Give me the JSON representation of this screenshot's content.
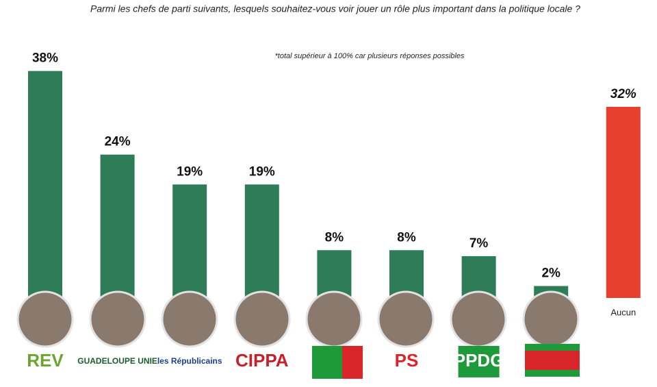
{
  "chart_data": {
    "type": "bar",
    "title": "Parmi les chefs de parti suivants, lesquels souhaitez-vous voir jouer un rôle plus important dans la politique locale ?",
    "note": "*total supérieur à 100% car plusieurs réponses possibles",
    "categories": [
      "REV",
      "GUADELOUPE UNIE",
      "les Républicains",
      "CIPPA",
      null,
      "PS",
      "PPDG",
      null,
      "Aucun"
    ],
    "values": [
      38,
      24,
      19,
      19,
      8,
      8,
      7,
      2,
      32
    ],
    "value_labels": [
      "38%",
      "24%",
      "19%",
      "19%",
      "8%",
      "8%",
      "7%",
      "2%",
      "32%"
    ],
    "colors": [
      "#2f7d58",
      "#2f7d58",
      "#2f7d58",
      "#2f7d58",
      "#2f7d58",
      "#2f7d58",
      "#2f7d58",
      "#2f7d58",
      "#e8402f"
    ]
  }
}
